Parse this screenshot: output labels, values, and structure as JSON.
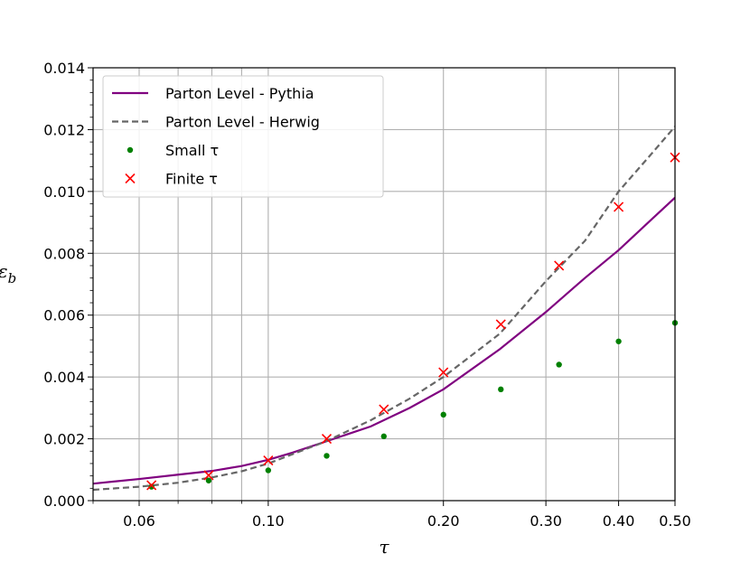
{
  "chart_data": {
    "type": "line",
    "title": "",
    "xlabel": "τ",
    "ylabel": "ε",
    "ylabel_sub": "b",
    "xscale": "log",
    "xlim": [
      0.05,
      0.5
    ],
    "ylim": [
      0,
      0.014
    ],
    "x_major_ticks": [
      0.06,
      0.1,
      0.2,
      0.3,
      0.4,
      0.5
    ],
    "x_tick_labels": [
      "0.06",
      "0.10",
      "0.20",
      "0.30",
      "0.40",
      "0.50"
    ],
    "x_minor_ticks": [
      0.07,
      0.08,
      0.09
    ],
    "y_major_ticks": [
      0,
      0.002,
      0.004,
      0.006,
      0.008,
      0.01,
      0.012,
      0.014
    ],
    "y_tick_labels": [
      "0.000",
      "0.002",
      "0.004",
      "0.006",
      "0.008",
      "0.010",
      "0.012",
      "0.014"
    ],
    "grid": true,
    "legend_position": "top-left",
    "series": [
      {
        "name": "Parton Level - Pythia",
        "kind": "line",
        "style": "solid",
        "color": "#800080",
        "x": [
          0.05,
          0.06,
          0.07,
          0.08,
          0.09,
          0.1,
          0.11,
          0.125,
          0.15,
          0.175,
          0.2,
          0.25,
          0.3,
          0.35,
          0.4,
          0.45,
          0.5
        ],
        "y": [
          0.00055,
          0.0007,
          0.00084,
          0.00096,
          0.00112,
          0.00132,
          0.00155,
          0.0019,
          0.0024,
          0.003,
          0.0036,
          0.0049,
          0.0061,
          0.0072,
          0.0081,
          0.009,
          0.0098
        ]
      },
      {
        "name": "Parton Level - Herwig",
        "kind": "line",
        "style": "dashed",
        "color": "#666666",
        "x": [
          0.05,
          0.06,
          0.07,
          0.08,
          0.09,
          0.1,
          0.11,
          0.125,
          0.15,
          0.175,
          0.2,
          0.25,
          0.3,
          0.35,
          0.4,
          0.45,
          0.5
        ],
        "y": [
          0.00035,
          0.00045,
          0.00058,
          0.00075,
          0.00095,
          0.0012,
          0.0015,
          0.0019,
          0.0026,
          0.0033,
          0.004,
          0.0054,
          0.0071,
          0.0084,
          0.01,
          0.0111,
          0.0121
        ]
      },
      {
        "name": "Small τ",
        "kind": "scatter",
        "marker": "dot",
        "color": "#008000",
        "x": [
          0.063,
          0.079,
          0.1,
          0.126,
          0.158,
          0.2,
          0.251,
          0.316,
          0.4,
          0.5
        ],
        "y": [
          0.00045,
          0.00065,
          0.00098,
          0.00145,
          0.00208,
          0.00278,
          0.0036,
          0.0044,
          0.00515,
          0.00575
        ]
      },
      {
        "name": "Finite τ",
        "kind": "scatter",
        "marker": "x",
        "color": "#ff0000",
        "x": [
          0.063,
          0.079,
          0.1,
          0.126,
          0.158,
          0.2,
          0.251,
          0.316,
          0.4,
          0.5
        ],
        "y": [
          0.0005,
          0.00082,
          0.0013,
          0.002,
          0.00295,
          0.00415,
          0.0057,
          0.0076,
          0.0095,
          0.0111
        ]
      }
    ]
  }
}
